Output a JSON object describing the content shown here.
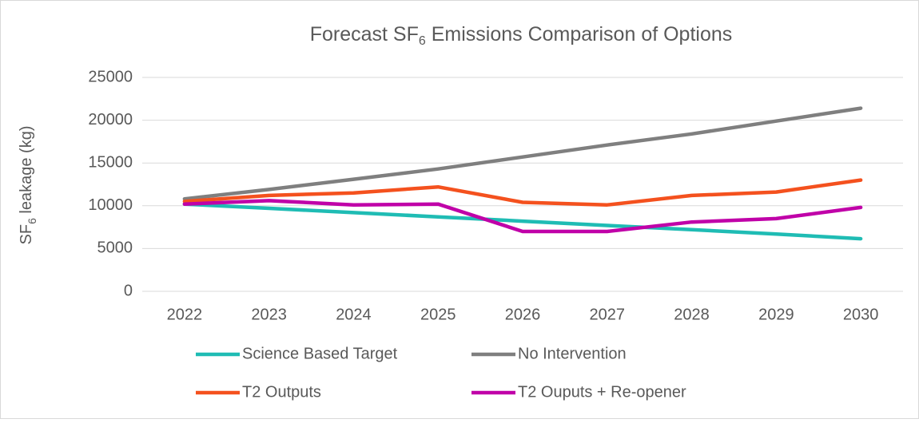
{
  "chart_data": {
    "type": "line",
    "title": [
      "Forecast SF",
      "6",
      " Emissions Comparison of Options"
    ],
    "ylabel": [
      "SF",
      "6",
      " leakage (kg)"
    ],
    "categories": [
      "2022",
      "2023",
      "2024",
      "2025",
      "2026",
      "2027",
      "2028",
      "2029",
      "2030"
    ],
    "series": [
      {
        "name": "Science Based Target",
        "color": "#1fbcb4",
        "values": [
          10200,
          9700,
          9200,
          8700,
          8200,
          7700,
          7200,
          6700,
          6150
        ]
      },
      {
        "name": "No Intervention",
        "color": "#7f7f7f",
        "values": [
          10800,
          11900,
          13100,
          14300,
          15700,
          17100,
          18400,
          19900,
          21400
        ]
      },
      {
        "name": "T2 Outputs",
        "color": "#f4511e",
        "values": [
          10500,
          11200,
          11500,
          12200,
          10400,
          10100,
          11200,
          11600,
          13000
        ]
      },
      {
        "name": "T2 Ouputs + Re-opener",
        "color": "#c000a8",
        "values": [
          10200,
          10600,
          10100,
          10200,
          7000,
          7000,
          8100,
          8500,
          9800
        ]
      }
    ],
    "ylim": [
      0,
      25000
    ],
    "yticks": [
      0,
      5000,
      10000,
      15000,
      20000,
      25000
    ],
    "grid": true,
    "legend": "bottom"
  }
}
